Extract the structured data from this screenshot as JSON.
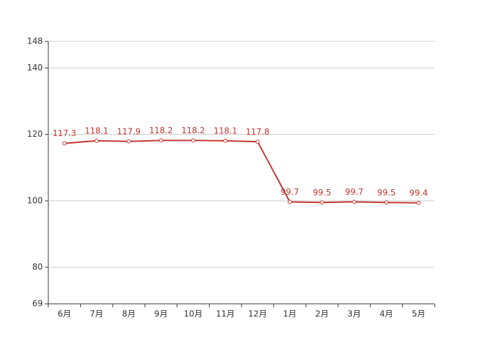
{
  "chart_data": {
    "type": "line",
    "categories": [
      "6月",
      "7月",
      "8月",
      "9月",
      "10月",
      "11月",
      "12月",
      "1月",
      "2月",
      "3月",
      "4月",
      "5月"
    ],
    "values": [
      117.3,
      118.1,
      117.9,
      118.2,
      118.2,
      118.1,
      117.8,
      99.7,
      99.5,
      99.7,
      99.5,
      99.4
    ],
    "color": "#c23531",
    "ylim": [
      69,
      148
    ],
    "yticks": [
      69,
      80,
      100,
      120,
      140,
      148
    ],
    "grid": true
  }
}
